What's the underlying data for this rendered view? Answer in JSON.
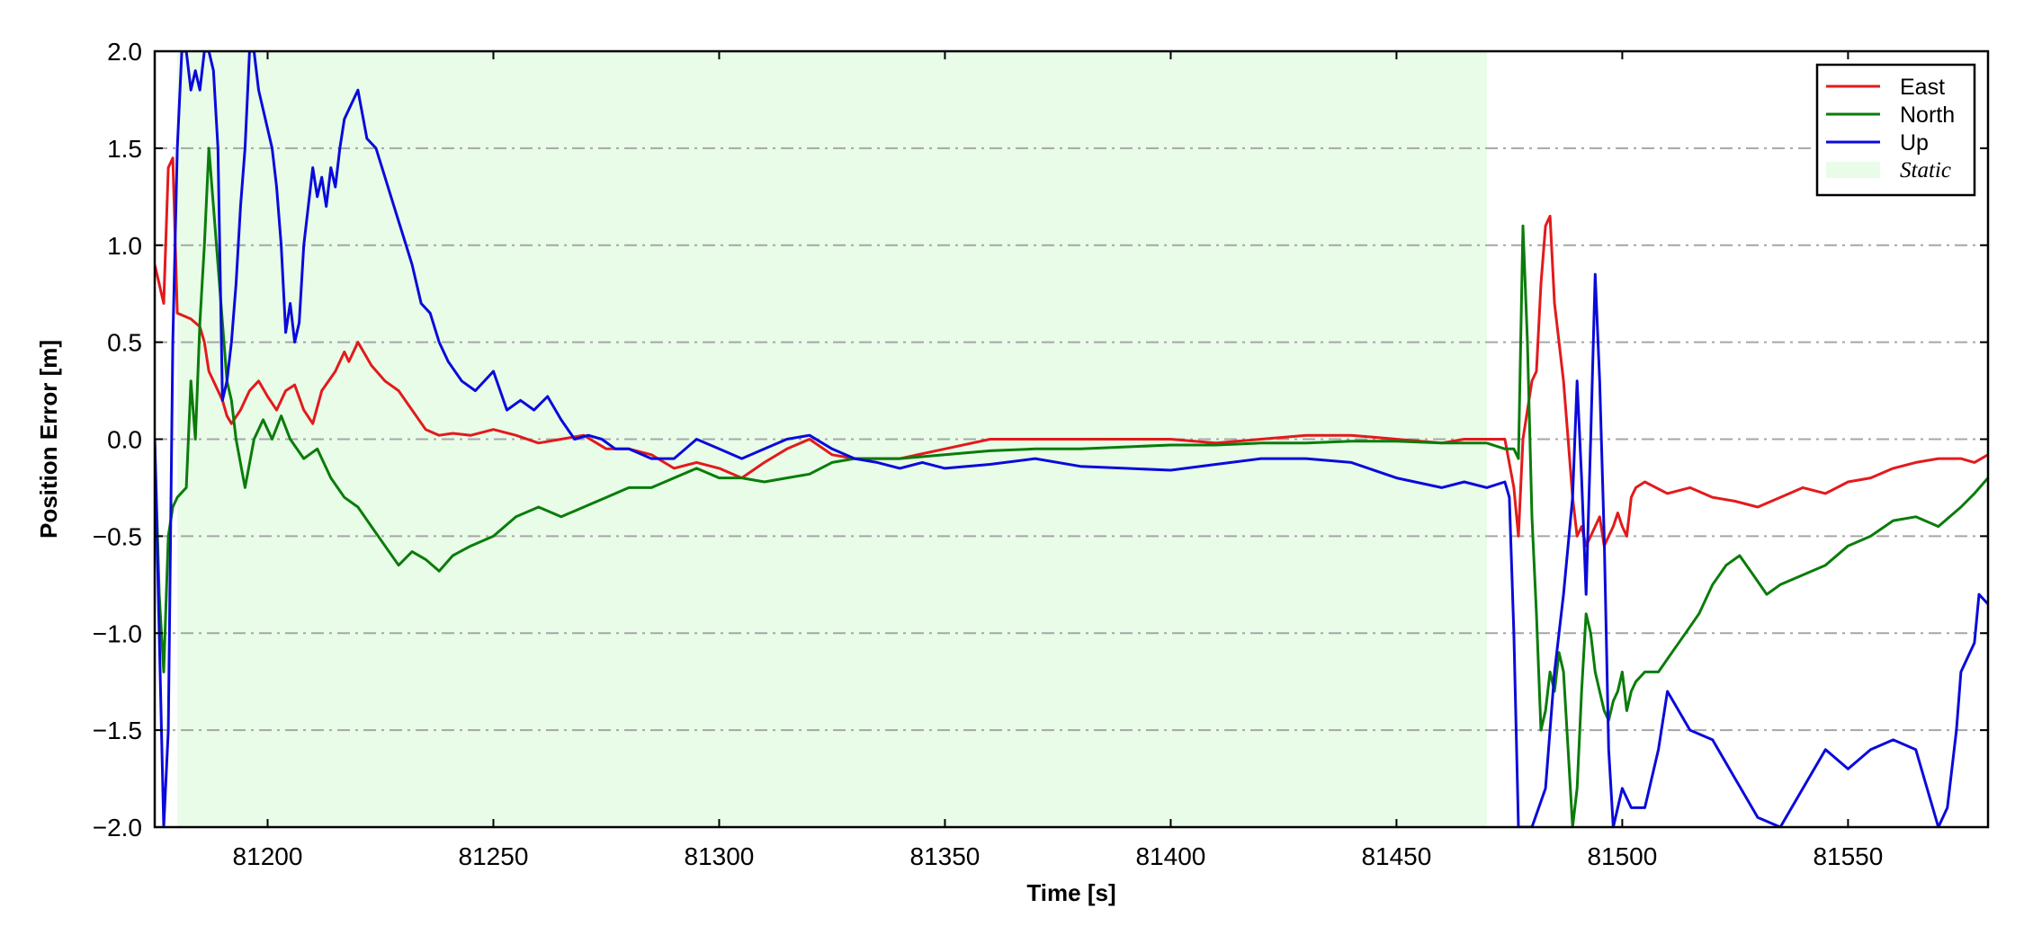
{
  "chart_data": {
    "type": "line",
    "title": "",
    "xlabel": "Time [s]",
    "ylabel": "Position Error [m]",
    "xlim": [
      81175,
      81581
    ],
    "ylim": [
      -2.0,
      2.0
    ],
    "xticks": [
      81200,
      81250,
      81300,
      81350,
      81400,
      81450,
      81500,
      81550
    ],
    "xtick_labels": [
      "81200",
      "81250",
      "81300",
      "81350",
      "81400",
      "81450",
      "81500",
      "81550"
    ],
    "yticks": [
      -2.0,
      -1.5,
      -1.0,
      -0.5,
      0.0,
      0.5,
      1.0,
      1.5,
      2.0
    ],
    "ytick_labels": [
      "−2.0",
      "−1.5",
      "−1.0",
      "−0.5",
      "0.0",
      "0.5",
      "1.0",
      "1.5",
      "2.0"
    ],
    "grid": "horizontal dash-dot",
    "legend_position": "top-right",
    "static_region": {
      "label": "Static",
      "x_start": 81180,
      "x_end": 81470,
      "color": "#e8fce8"
    },
    "series": [
      {
        "name": "East",
        "color": "#e31a1c",
        "x": [
          81175,
          81177,
          81178,
          81179,
          81180,
          81183,
          81185,
          81186,
          81187,
          81188,
          81190,
          81191,
          81192,
          81194,
          81195,
          81196,
          81198,
          81200,
          81202,
          81204,
          81206,
          81208,
          81210,
          81212,
          81215,
          81217,
          81218,
          81220,
          81223,
          81226,
          81229,
          81232,
          81235,
          81238,
          81241,
          81245,
          81250,
          81255,
          81260,
          81265,
          81270,
          81275,
          81280,
          81285,
          81290,
          81295,
          81300,
          81305,
          81310,
          81315,
          81320,
          81325,
          81330,
          81340,
          81350,
          81360,
          81370,
          81380,
          81390,
          81400,
          81410,
          81420,
          81430,
          81440,
          81450,
          81460,
          81465,
          81470,
          81474,
          81476,
          81477,
          81478,
          81479,
          81480,
          81481,
          81482,
          81483,
          81484,
          81485,
          81486,
          81487,
          81488,
          81489,
          81490,
          81491,
          81492,
          81493,
          81494,
          81495,
          81496,
          81497,
          81498,
          81499,
          81500,
          81501,
          81502,
          81503,
          81505,
          81510,
          81515,
          81520,
          81525,
          81530,
          81535,
          81540,
          81545,
          81550,
          81555,
          81560,
          81565,
          81570,
          81575,
          81578,
          81581
        ],
        "values": [
          0.9,
          0.7,
          1.4,
          1.45,
          0.65,
          0.62,
          0.58,
          0.5,
          0.35,
          0.3,
          0.2,
          0.12,
          0.08,
          0.15,
          0.2,
          0.25,
          0.3,
          0.22,
          0.15,
          0.25,
          0.28,
          0.15,
          0.08,
          0.25,
          0.35,
          0.45,
          0.4,
          0.5,
          0.38,
          0.3,
          0.25,
          0.15,
          0.05,
          0.02,
          0.03,
          0.02,
          0.05,
          0.02,
          -0.02,
          0.0,
          0.02,
          -0.05,
          -0.05,
          -0.08,
          -0.15,
          -0.12,
          -0.15,
          -0.2,
          -0.12,
          -0.05,
          0.0,
          -0.08,
          -0.1,
          -0.1,
          -0.05,
          0.0,
          0.0,
          0.0,
          0.0,
          0.0,
          -0.02,
          0.0,
          0.02,
          0.02,
          0.0,
          -0.02,
          0.0,
          0.0,
          0.0,
          -0.25,
          -0.5,
          0.0,
          0.15,
          0.3,
          0.35,
          0.8,
          1.1,
          1.15,
          0.7,
          0.5,
          0.3,
          0.0,
          -0.3,
          -0.5,
          -0.45,
          -0.55,
          -0.5,
          -0.45,
          -0.4,
          -0.55,
          -0.5,
          -0.45,
          -0.38,
          -0.45,
          -0.5,
          -0.3,
          -0.25,
          -0.22,
          -0.28,
          -0.25,
          -0.3,
          -0.32,
          -0.35,
          -0.3,
          -0.25,
          -0.28,
          -0.22,
          -0.2,
          -0.15,
          -0.12,
          -0.1,
          -0.1,
          -0.12,
          -0.08
        ]
      },
      {
        "name": "North",
        "color": "#0a7c0a",
        "x": [
          81175,
          81176,
          81177,
          81178,
          81179,
          81180,
          81182,
          81183,
          81184,
          81185,
          81186,
          81187,
          81188,
          81189,
          81190,
          81191,
          81192,
          81193,
          81195,
          81197,
          81199,
          81201,
          81203,
          81205,
          81208,
          81211,
          81214,
          81217,
          81220,
          81223,
          81226,
          81229,
          81232,
          81235,
          81238,
          81241,
          81245,
          81250,
          81255,
          81260,
          81265,
          81270,
          81275,
          81280,
          81285,
          81290,
          81295,
          81300,
          81305,
          81310,
          81315,
          81320,
          81325,
          81330,
          81340,
          81350,
          81360,
          81370,
          81380,
          81390,
          81400,
          81410,
          81420,
          81430,
          81440,
          81450,
          81460,
          81470,
          81474,
          81476,
          81477,
          81478,
          81479,
          81480,
          81481,
          81482,
          81483,
          81484,
          81485,
          81486,
          81487,
          81488,
          81489,
          81490,
          81491,
          81492,
          81493,
          81494,
          81495,
          81496,
          81497,
          81498,
          81499,
          81500,
          81501,
          81502,
          81503,
          81505,
          81508,
          81511,
          81514,
          81517,
          81520,
          81523,
          81526,
          81529,
          81532,
          81535,
          81540,
          81545,
          81550,
          81555,
          81560,
          81565,
          81570,
          81575,
          81578,
          81581
        ],
        "values": [
          0.0,
          -0.8,
          -1.2,
          -0.5,
          -0.35,
          -0.3,
          -0.25,
          0.3,
          0.0,
          0.6,
          1.0,
          1.5,
          1.2,
          0.9,
          0.6,
          0.3,
          0.2,
          0.0,
          -0.25,
          0.0,
          0.1,
          0.0,
          0.12,
          0.0,
          -0.1,
          -0.05,
          -0.2,
          -0.3,
          -0.35,
          -0.45,
          -0.55,
          -0.65,
          -0.58,
          -0.62,
          -0.68,
          -0.6,
          -0.55,
          -0.5,
          -0.4,
          -0.35,
          -0.4,
          -0.35,
          -0.3,
          -0.25,
          -0.25,
          -0.2,
          -0.15,
          -0.2,
          -0.2,
          -0.22,
          -0.2,
          -0.18,
          -0.12,
          -0.1,
          -0.1,
          -0.08,
          -0.06,
          -0.05,
          -0.05,
          -0.04,
          -0.03,
          -0.03,
          -0.02,
          -0.02,
          -0.01,
          -0.01,
          -0.02,
          -0.02,
          -0.05,
          -0.05,
          -0.1,
          1.1,
          0.5,
          -0.4,
          -0.9,
          -1.5,
          -1.4,
          -1.2,
          -1.3,
          -1.1,
          -1.2,
          -1.6,
          -2.0,
          -1.8,
          -1.3,
          -0.9,
          -1.0,
          -1.2,
          -1.3,
          -1.4,
          -1.45,
          -1.35,
          -1.3,
          -1.2,
          -1.4,
          -1.3,
          -1.25,
          -1.2,
          -1.2,
          -1.1,
          -1.0,
          -0.9,
          -0.75,
          -0.65,
          -0.6,
          -0.7,
          -0.8,
          -0.75,
          -0.7,
          -0.65,
          -0.55,
          -0.5,
          -0.42,
          -0.4,
          -0.45,
          -0.35,
          -0.28,
          -0.2
        ]
      },
      {
        "name": "Up",
        "color": "#0a0adb",
        "x": [
          81175,
          81176,
          81177,
          81178,
          81179,
          81180,
          81181,
          81182,
          81183,
          81184,
          81185,
          81186,
          81187,
          81188,
          81189,
          81190,
          81191,
          81192,
          81193,
          81194,
          81195,
          81196,
          81197,
          81198,
          81199,
          81200,
          81201,
          81202,
          81203,
          81204,
          81205,
          81206,
          81207,
          81208,
          81209,
          81210,
          81211,
          81212,
          81213,
          81214,
          81215,
          81216,
          81217,
          81218,
          81219,
          81220,
          81222,
          81224,
          81226,
          81228,
          81230,
          81232,
          81234,
          81236,
          81238,
          81240,
          81243,
          81246,
          81250,
          81253,
          81256,
          81259,
          81262,
          81265,
          81268,
          81271,
          81274,
          81277,
          81280,
          81285,
          81290,
          81295,
          81300,
          81305,
          81310,
          81315,
          81320,
          81325,
          81330,
          81335,
          81340,
          81345,
          81350,
          81360,
          81370,
          81380,
          81390,
          81400,
          81410,
          81420,
          81430,
          81440,
          81450,
          81460,
          81465,
          81470,
          81474,
          81475,
          81476,
          81477,
          81478,
          81480,
          81483,
          81485,
          81487,
          81489,
          81490,
          81491,
          81492,
          81493,
          81494,
          81495,
          81496,
          81497,
          81498,
          81500,
          81502,
          81505,
          81508,
          81510,
          81515,
          81520,
          81525,
          81530,
          81535,
          81540,
          81545,
          81550,
          81555,
          81560,
          81565,
          81570,
          81572,
          81574,
          81575,
          81578,
          81579,
          81581
        ],
        "values": [
          0.0,
          -1.0,
          -2.0,
          -1.5,
          0.5,
          1.5,
          2.0,
          2.0,
          1.8,
          1.9,
          1.8,
          2.0,
          2.0,
          1.9,
          1.5,
          0.2,
          0.3,
          0.5,
          0.8,
          1.2,
          1.5,
          2.0,
          2.0,
          1.8,
          1.7,
          1.6,
          1.5,
          1.3,
          1.0,
          0.55,
          0.7,
          0.5,
          0.6,
          1.0,
          1.2,
          1.4,
          1.25,
          1.35,
          1.2,
          1.4,
          1.3,
          1.5,
          1.65,
          1.7,
          1.75,
          1.8,
          1.55,
          1.5,
          1.35,
          1.2,
          1.05,
          0.9,
          0.7,
          0.65,
          0.5,
          0.4,
          0.3,
          0.25,
          0.35,
          0.15,
          0.2,
          0.15,
          0.22,
          0.1,
          0.0,
          0.02,
          0.0,
          -0.05,
          -0.05,
          -0.1,
          -0.1,
          0.0,
          -0.05,
          -0.1,
          -0.05,
          0.0,
          0.02,
          -0.05,
          -0.1,
          -0.12,
          -0.15,
          -0.12,
          -0.15,
          -0.13,
          -0.1,
          -0.14,
          -0.15,
          -0.16,
          -0.13,
          -0.1,
          -0.1,
          -0.12,
          -0.2,
          -0.25,
          -0.22,
          -0.25,
          -0.22,
          -0.3,
          -1.0,
          -2.0,
          -2.0,
          -2.0,
          -1.8,
          -1.2,
          -0.8,
          -0.3,
          0.3,
          -0.2,
          -0.8,
          0.0,
          0.85,
          0.3,
          -0.5,
          -1.6,
          -2.0,
          -1.8,
          -1.9,
          -1.9,
          -1.6,
          -1.3,
          -1.5,
          -1.55,
          -1.75,
          -1.95,
          -2.0,
          -1.8,
          -1.6,
          -1.7,
          -1.6,
          -1.55,
          -1.6,
          -2.0,
          -1.9,
          -1.5,
          -1.2,
          -1.05,
          -0.8,
          -0.85
        ]
      }
    ]
  }
}
